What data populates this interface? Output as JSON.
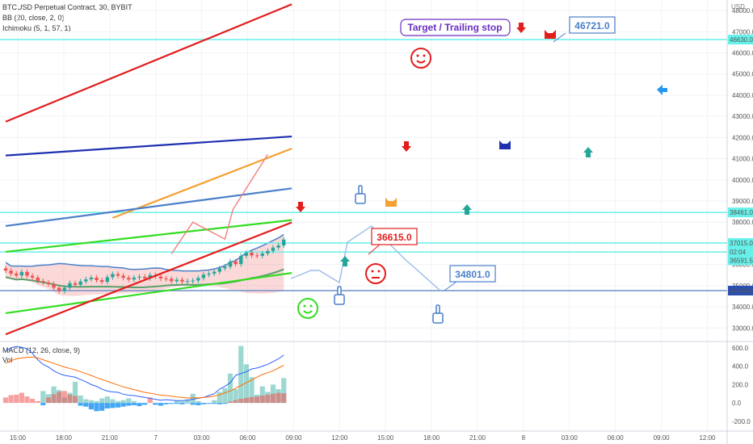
{
  "header": {
    "symbol_line": "BTCUSD Perpetual Contract, 30, BYBIT",
    "bb_line": "BB (20, close, 2, 0)",
    "ichimoku_line": "Ichimoku (5, 1, 57, 1)",
    "currency": "USD"
  },
  "macd_panel": {
    "title": "MACD (12, 26, close, 9)",
    "vol": "Vol"
  },
  "colors": {
    "red": "#e21d1d",
    "blue": "#1e2fb0",
    "steel_blue": "#4a7fc9",
    "orange": "#f5a030",
    "green": "#33dd22",
    "cyan": "#66f0ea",
    "candle_up": "#26a69a",
    "candle_down": "#ef5350",
    "accent_purple": "#6a2fc0"
  },
  "annotations": {
    "target_label": "Target / Trailing stop",
    "target_price": "46721.0",
    "mid_price": "36615.0",
    "low_price": "34801.0"
  },
  "chart_data": [
    {
      "type": "line",
      "title": "BTCUSD Perpetual Contract, 30, BYBIT",
      "x_ticks": [
        "15:00",
        "18:00",
        "21:00",
        "7",
        "03:00",
        "06:00",
        "09:00",
        "12:00",
        "15:00",
        "18:00",
        "21:00",
        "8",
        "03:00",
        "06:00",
        "09:00",
        "12:00"
      ],
      "y_ticks": [
        33000,
        34000,
        35000,
        36000,
        37000,
        38000,
        39000,
        40000,
        41000,
        42000,
        43000,
        44000,
        45000,
        46000,
        47000,
        48000
      ],
      "ylim": [
        32400,
        48500
      ],
      "price_labels": [
        "46630.0",
        "38461.0",
        "37015.0",
        "02:04",
        "36591.5",
        "34766.0"
      ],
      "horizontal_levels": [
        46630,
        38461,
        37015,
        36591.5,
        34766
      ],
      "candles": {
        "open": [
          35820,
          35710,
          35570,
          35480,
          35650,
          35470,
          35380,
          35220,
          35150,
          35080,
          34900,
          34750,
          34900,
          35120,
          35040,
          35200,
          35300,
          35380,
          35260,
          35180,
          35400,
          35550,
          35470,
          35370,
          35290,
          35380,
          35420,
          35350,
          35500,
          35430,
          35340,
          35320,
          35210,
          35280,
          35190,
          35210,
          35240,
          35360,
          35520,
          35570,
          35660,
          35820,
          35900,
          36150,
          36020,
          36410,
          36560,
          36430,
          36410,
          36520,
          36640,
          36800,
          36900
        ],
        "close": [
          35710,
          35570,
          35480,
          35650,
          35470,
          35380,
          35220,
          35150,
          35080,
          34900,
          34750,
          34900,
          35120,
          35040,
          35200,
          35300,
          35380,
          35260,
          35180,
          35400,
          35550,
          35470,
          35370,
          35290,
          35380,
          35420,
          35350,
          35500,
          35430,
          35340,
          35320,
          35210,
          35280,
          35190,
          35210,
          35240,
          35360,
          35520,
          35570,
          35660,
          35820,
          35900,
          36150,
          36020,
          36410,
          36560,
          36430,
          36410,
          36520,
          36640,
          36800,
          36900,
          37180
        ]
      },
      "lines": [
        {
          "color": "red",
          "x": [
            0,
            53.5
          ],
          "y": [
            42750,
            48300
          ]
        },
        {
          "color": "blue",
          "x": [
            0,
            53.5
          ],
          "y": [
            41150,
            42050
          ]
        },
        {
          "color": "orange",
          "x": [
            20,
            53.5
          ],
          "y": [
            38200,
            41480
          ]
        },
        {
          "color": "steel_blue",
          "x": [
            0,
            53.5
          ],
          "y": [
            37820,
            39600
          ]
        },
        {
          "color": "green",
          "x": [
            0,
            53.5
          ],
          "y": [
            36600,
            38100
          ]
        },
        {
          "color": "green",
          "x": [
            0,
            53.5
          ],
          "y": [
            33700,
            35600
          ]
        },
        {
          "color": "red",
          "x": [
            0,
            53.5
          ],
          "y": [
            32700,
            37990
          ]
        }
      ],
      "projection_path": [
        [
          31,
          36500
        ],
        [
          35,
          38000
        ],
        [
          41,
          37200
        ],
        [
          42.5,
          38600
        ],
        [
          46,
          40000
        ],
        [
          49,
          41200
        ]
      ]
    },
    {
      "type": "bar",
      "title": "MACD (12, 26, close, 9)",
      "y_ticks": [
        -200,
        0,
        200,
        400,
        600
      ],
      "ylim": [
        -280,
        660
      ],
      "histogram": [
        60,
        85,
        90,
        110,
        70,
        45,
        20,
        -25,
        60,
        95,
        120,
        130,
        90,
        75,
        -30,
        -40,
        -70,
        -90,
        -85,
        -60,
        -55,
        -50,
        -40,
        -30,
        -25,
        -35,
        -20,
        60,
        -20,
        -30,
        -15,
        -10,
        -10,
        -15,
        -5,
        -20,
        -25,
        -15,
        -10,
        -10,
        -15,
        -10,
        15,
        30,
        45,
        55,
        65,
        70,
        80,
        90,
        100,
        110,
        105
      ],
      "volume": [
        0,
        0,
        0,
        0,
        0,
        0,
        0,
        130,
        95,
        180,
        140,
        60,
        110,
        230,
        80,
        40,
        30,
        20,
        50,
        70,
        40,
        20,
        30,
        50,
        20,
        0,
        0,
        0,
        0,
        0,
        0,
        0,
        30,
        20,
        40,
        100,
        20,
        0,
        0,
        30,
        120,
        160,
        320,
        150,
        620,
        420,
        280,
        90,
        180,
        120,
        200,
        150,
        270
      ],
      "macd_line": [
        560,
        600,
        615,
        605,
        590,
        540,
        470,
        420,
        390,
        350,
        320,
        300,
        290,
        280,
        255,
        230,
        200,
        180,
        150,
        130,
        120,
        115,
        95,
        85,
        80,
        70,
        60,
        50,
        40,
        30,
        35,
        30,
        25,
        25,
        30,
        40,
        50,
        60,
        80,
        100,
        150,
        180,
        220,
        300,
        320,
        340,
        370,
        380,
        400,
        420,
        450,
        480,
        520
      ],
      "signal_line": [
        430,
        460,
        480,
        490,
        495,
        500,
        490,
        470,
        450,
        430,
        410,
        390,
        375,
        360,
        340,
        320,
        300,
        275,
        255,
        235,
        215,
        195,
        175,
        160,
        145,
        130,
        115,
        105,
        95,
        85,
        80,
        75,
        65,
        60,
        55,
        55,
        55,
        60,
        65,
        75,
        90,
        110,
        130,
        160,
        190,
        220,
        250,
        280,
        310,
        330,
        350,
        380,
        410
      ]
    }
  ]
}
